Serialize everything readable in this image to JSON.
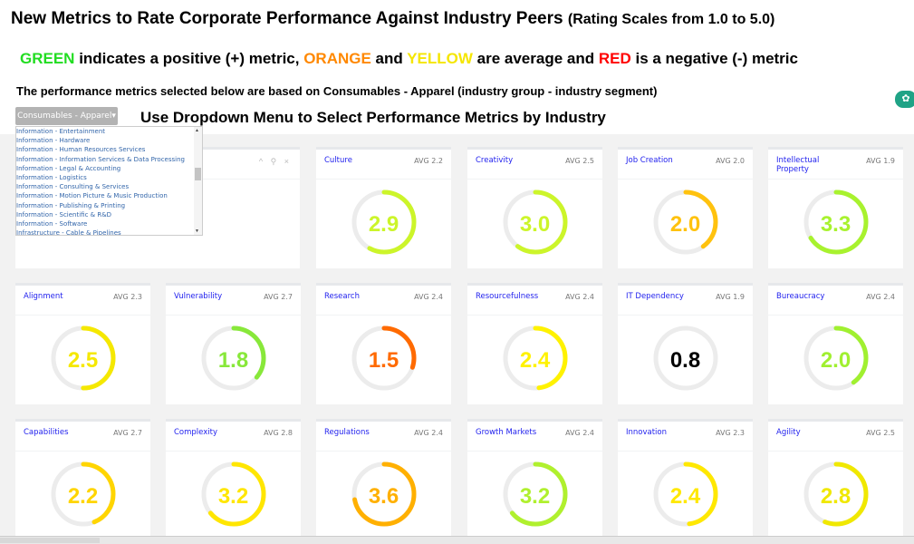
{
  "header": {
    "title": "New Metrics to Rate Corporate Performance Against Industry Peers",
    "title_sub": "(Rating Scales from 1.0 to 5.0)",
    "legend": [
      {
        "text": "GREEN",
        "color": "#22dd22"
      },
      {
        "text": " indicates a positive (+) metric, ",
        "color": "#000000"
      },
      {
        "text": "ORANGE",
        "color": "#ff8800"
      },
      {
        "text": " and ",
        "color": "#000000"
      },
      {
        "text": "YELLOW",
        "color": "#f5e600"
      },
      {
        "text": " are average and ",
        "color": "#000000"
      },
      {
        "text": "RED",
        "color": "#ff0000"
      },
      {
        "text": " is a negative (-) metric",
        "color": "#000000"
      }
    ],
    "basis": "The performance metrics selected below are based on Consumables - Apparel (industry group - industry segment)",
    "instruction": "Use Dropdown Menu to Select Performance Metrics by Industry"
  },
  "dropdown": {
    "selected": "Consumables - Apparel",
    "options": [
      "Information - Entertainment",
      "Information - Hardware",
      "Information - Human Resources Services",
      "Information - Information Services & Data Processing",
      "Information - Legal & Accounting",
      "Information - Logistics",
      "Information - Consulting & Services",
      "Information - Motion Picture & Music Production",
      "Information - Publishing & Printing",
      "Information - Scientific & R&D",
      "Information - Software",
      "Infrastructure - Cable & Pipelines"
    ]
  },
  "first_card_tools": "^ ⚲ ×",
  "cards": [
    {
      "title": "Culture",
      "avg": "AVG 2.2",
      "value": 2.9,
      "color": "#ccf52a"
    },
    {
      "title": "Creativity",
      "avg": "AVG 2.5",
      "value": 3.0,
      "color": "#ccf52a"
    },
    {
      "title": "Job Creation",
      "avg": "AVG 2.0",
      "value": 2.0,
      "color": "#ffc20e"
    },
    {
      "title": "Intellectual Property",
      "avg": "AVG 1.9",
      "value": 3.3,
      "color": "#a8f22e"
    },
    {
      "title": "Alignment",
      "avg": "AVG 2.3",
      "value": 2.5,
      "color": "#f5e800"
    },
    {
      "title": "Vulnerability",
      "avg": "AVG 2.7",
      "value": 1.8,
      "color": "#88e83a"
    },
    {
      "title": "Research",
      "avg": "AVG 2.4",
      "value": 1.5,
      "color": "#ff6a00"
    },
    {
      "title": "Resourcefulness",
      "avg": "AVG 2.4",
      "value": 2.4,
      "color": "#fff200"
    },
    {
      "title": "IT Dependency",
      "avg": "AVG 1.9",
      "value": 0.8,
      "color": "#000000"
    },
    {
      "title": "Bureaucracy",
      "avg": "AVG 2.4",
      "value": 2.0,
      "color": "#a0f030"
    },
    {
      "title": "Capabilities",
      "avg": "AVG 2.7",
      "value": 2.2,
      "color": "#ffd500"
    },
    {
      "title": "Complexity",
      "avg": "AVG 2.8",
      "value": 3.2,
      "color": "#ffe600"
    },
    {
      "title": "Regulations",
      "avg": "AVG 2.4",
      "value": 3.6,
      "color": "#ffb000"
    },
    {
      "title": "Growth Markets",
      "avg": "AVG 2.4",
      "value": 3.2,
      "color": "#b0f02e"
    },
    {
      "title": "Innovation",
      "avg": "AVG 2.3",
      "value": 2.4,
      "color": "#ffe800"
    },
    {
      "title": "Agility",
      "avg": "AVG 2.5",
      "value": 2.8,
      "color": "#f0e800"
    }
  ],
  "scale_max": 5
}
